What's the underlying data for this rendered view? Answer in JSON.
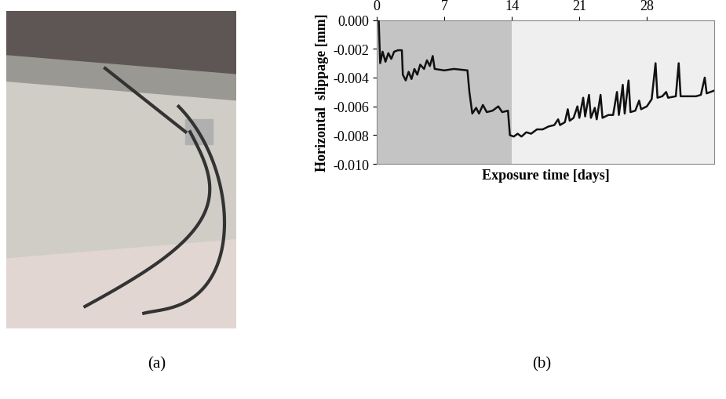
{
  "chart_data": {
    "type": "line",
    "x_label": "Exposure time [days]",
    "y_label": "Horizontal  slippage [mm]",
    "x": [
      0.0,
      0.2,
      0.35,
      0.6,
      0.9,
      1.2,
      1.5,
      1.8,
      2.2,
      2.6,
      2.7,
      3.0,
      3.3,
      3.6,
      3.9,
      4.2,
      4.5,
      4.9,
      5.2,
      5.5,
      5.8,
      6.0,
      7.0,
      8.0,
      9.4,
      9.6,
      9.9,
      10.3,
      10.6,
      11.0,
      11.4,
      12.0,
      12.6,
      13.0,
      13.6,
      13.8,
      14.2,
      14.6,
      15.0,
      15.5,
      16.0,
      16.6,
      17.2,
      17.8,
      18.4,
      18.8,
      19.0,
      19.5,
      19.8,
      20.0,
      20.4,
      20.8,
      21.0,
      21.4,
      21.6,
      22.0,
      22.2,
      22.6,
      22.8,
      23.2,
      23.4,
      24.0,
      24.5,
      24.9,
      25.1,
      25.5,
      25.7,
      26.1,
      26.3,
      26.8,
      27.2,
      27.4,
      28.0,
      28.5,
      28.9,
      29.1,
      29.6,
      30.0,
      30.2,
      31.0,
      31.3,
      31.5,
      32.0,
      32.6,
      33.1,
      33.6,
      34.0,
      34.2,
      34.6,
      35.0
    ],
    "values": [
      0.0,
      0.0,
      -0.003,
      -0.0022,
      -0.0029,
      -0.0023,
      -0.0027,
      -0.0022,
      -0.0021,
      -0.0021,
      -0.0038,
      -0.0042,
      -0.0036,
      -0.0041,
      -0.0034,
      -0.0038,
      -0.0031,
      -0.0034,
      -0.0028,
      -0.0032,
      -0.0025,
      -0.0034,
      -0.0035,
      -0.0034,
      -0.0035,
      -0.005,
      -0.0065,
      -0.0061,
      -0.0065,
      -0.0059,
      -0.0064,
      -0.0063,
      -0.006,
      -0.0064,
      -0.0063,
      -0.008,
      -0.0081,
      -0.0079,
      -0.0081,
      -0.0078,
      -0.0079,
      -0.0076,
      -0.0076,
      -0.0074,
      -0.0073,
      -0.0069,
      -0.0073,
      -0.0071,
      -0.0062,
      -0.007,
      -0.0068,
      -0.006,
      -0.0068,
      -0.0054,
      -0.0067,
      -0.0052,
      -0.0068,
      -0.0061,
      -0.0069,
      -0.0052,
      -0.0068,
      -0.0066,
      -0.0066,
      -0.005,
      -0.0066,
      -0.0045,
      -0.0065,
      -0.0042,
      -0.0064,
      -0.0063,
      -0.0056,
      -0.0062,
      -0.006,
      -0.0055,
      -0.003,
      -0.0054,
      -0.0053,
      -0.005,
      -0.0054,
      -0.0053,
      -0.003,
      -0.0053,
      -0.0053,
      -0.0053,
      -0.0053,
      -0.0052,
      -0.004,
      -0.0051,
      -0.005,
      -0.0049
    ],
    "color": "#111111",
    "xlim": [
      0,
      35
    ],
    "xticks": [
      0,
      7,
      14,
      21,
      28
    ],
    "ylim": [
      -0.01,
      0.0
    ],
    "yticks": [
      {
        "value": -0.01,
        "label": "-0.010"
      },
      {
        "value": -0.008,
        "label": "-0.008"
      },
      {
        "value": -0.006,
        "label": "-0.006"
      },
      {
        "value": -0.004,
        "label": "-0.004"
      },
      {
        "value": -0.002,
        "label": "-0.002"
      },
      {
        "value": 0.0,
        "label": "0.000"
      }
    ],
    "shaded_regions": [
      {
        "start": 0,
        "end": 14,
        "color": "#c4c4c4"
      },
      {
        "start": 14,
        "end": 35,
        "color": "#efefef"
      }
    ]
  },
  "panel_labels": [
    "(a)",
    "(b)"
  ]
}
